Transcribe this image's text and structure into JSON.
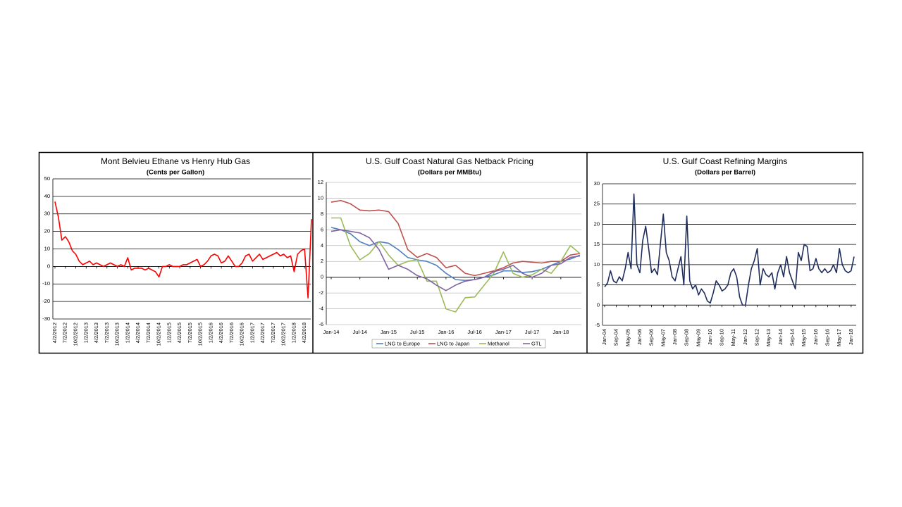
{
  "chart_data": [
    {
      "type": "line",
      "title": "Mont Belvieu Ethane vs Henry Hub Gas",
      "subtitle": "(Cents per Gallon)",
      "categories": [
        "4/2/2012",
        null,
        null,
        "7/2/2012",
        null,
        null,
        "10/2/2012",
        null,
        null,
        "1/2/2013",
        null,
        null,
        "4/2/2013",
        null,
        null,
        "7/2/2013",
        null,
        null,
        "10/2/2013",
        null,
        null,
        "1/2/2014",
        null,
        null,
        "4/2/2014",
        null,
        null,
        "7/2/2014",
        null,
        null,
        "10/2/2014",
        null,
        null,
        "1/2/2015",
        null,
        null,
        "4/2/2015",
        null,
        null,
        "7/2/2015",
        null,
        null,
        "10/2/2015",
        null,
        null,
        "1/2/2016",
        null,
        null,
        "4/2/2016",
        null,
        null,
        "7/2/2016",
        null,
        null,
        "10/2/2016",
        null,
        null,
        "1/2/2017",
        null,
        null,
        "4/2/2017",
        null,
        null,
        "7/2/2017",
        null,
        null,
        "10/2/2017",
        null,
        null,
        "1/2/2018",
        null,
        null,
        "4/2/2018",
        null,
        null
      ],
      "values": [
        37,
        28,
        15,
        17,
        14,
        9,
        7,
        3,
        1,
        2,
        3,
        1,
        2,
        1,
        0,
        1,
        2,
        1,
        0,
        1,
        0,
        5,
        -2,
        -1,
        -1,
        -1,
        -2,
        -1,
        -2,
        -3,
        -6,
        0,
        0,
        1,
        0,
        0,
        0,
        1,
        1,
        2,
        3,
        4,
        0,
        1,
        3,
        6,
        7,
        6,
        2,
        3,
        6,
        3,
        0,
        0,
        2,
        6,
        7,
        3,
        5,
        7,
        4,
        5,
        6,
        7,
        8,
        6,
        7,
        5,
        6,
        -3,
        7,
        9,
        10,
        -18,
        27
      ],
      "color": "#ff0000",
      "ylim": [
        -30,
        50
      ],
      "yticks": [
        -30,
        -20,
        -10,
        0,
        10,
        20,
        30,
        40,
        50
      ],
      "grid": true,
      "grid_color": "#000000"
    },
    {
      "type": "line",
      "title": "U.S. Gulf Coast Natural Gas Netback Pricing",
      "subtitle": "(Dollars per MMBtu)",
      "categories": [
        "Jan-14",
        null,
        null,
        "Jul-14",
        null,
        null,
        "Jan-15",
        null,
        null,
        "Jul-15",
        null,
        null,
        "Jan-16",
        null,
        null,
        "Jul-16",
        null,
        null,
        "Jan-17",
        null,
        null,
        "Jul-17",
        null,
        null,
        "Jan-18",
        null,
        null
      ],
      "series": [
        {
          "name": "LNG to Europe",
          "color": "#4f81bd",
          "values": [
            6.3,
            6,
            5.5,
            4.5,
            4,
            4.5,
            4.3,
            3.5,
            2.5,
            2.2,
            2,
            1.5,
            0.5,
            -0.3,
            -0.4,
            -0.3,
            0,
            0.3,
            0.8,
            0.8,
            0.6,
            0.7,
            1,
            1.5,
            2,
            2.3,
            2.8
          ]
        },
        {
          "name": "LNG to Japan",
          "color": "#c0504d",
          "values": [
            9.5,
            9.7,
            9.3,
            8.5,
            8.4,
            8.5,
            8.3,
            6.8,
            3.5,
            2.5,
            3,
            2.5,
            1.2,
            1.5,
            0.5,
            0.2,
            0.5,
            0.8,
            1.2,
            1.8,
            2,
            1.9,
            1.8,
            2,
            2,
            2.8,
            3
          ]
        },
        {
          "name": "Methanol",
          "color": "#9bbb59",
          "values": [
            7.5,
            7.5,
            4,
            2.2,
            3,
            4.5,
            2.8,
            1.5,
            2,
            2.2,
            -0.5,
            -0.5,
            -4,
            -4.4,
            -2.6,
            -2.5,
            -1,
            0.5,
            3.2,
            0.5,
            0,
            0.3,
            1,
            0.5,
            2,
            4,
            3
          ]
        },
        {
          "name": "GTL",
          "color": "#8064a2",
          "values": [
            5.8,
            6,
            5.8,
            5.6,
            5,
            3.5,
            1,
            1.5,
            1,
            0.2,
            -0.2,
            -1,
            -1.7,
            -1,
            -0.5,
            -0.3,
            0,
            0.7,
            1,
            1.5,
            0.5,
            0,
            0.5,
            1.5,
            1.7,
            2.5,
            2.7
          ]
        }
      ],
      "ylim": [
        -6,
        12
      ],
      "yticks": [
        -6,
        -4,
        -2,
        0,
        2,
        4,
        6,
        8,
        10,
        12
      ],
      "grid": true,
      "grid_color": "#bfbfbf",
      "legend": "bottom"
    },
    {
      "type": "line",
      "title": "U.S. Gulf Coast Refining Margins",
      "subtitle": "(Dollars per Barrel)",
      "categories": [
        "Jan-04",
        null,
        null,
        null,
        "Sep-04",
        null,
        null,
        null,
        "May-05",
        null,
        null,
        null,
        "Jan-06",
        null,
        null,
        null,
        "Sep-06",
        null,
        null,
        null,
        "May-07",
        null,
        null,
        null,
        "Jan-08",
        null,
        null,
        null,
        "Sep-08",
        null,
        null,
        null,
        "May-09",
        null,
        null,
        null,
        "Jan-10",
        null,
        null,
        null,
        "Sep-10",
        null,
        null,
        null,
        "May-11",
        null,
        null,
        null,
        "Jan-12",
        null,
        null,
        null,
        "Sep-12",
        null,
        null,
        null,
        "May-13",
        null,
        null,
        null,
        "Jan-14",
        null,
        null,
        null,
        "Sep-14",
        null,
        null,
        null,
        "May-15",
        null,
        null,
        null,
        "Jan-16",
        null,
        null,
        null,
        "Sep-16",
        null,
        null,
        null,
        "May-17",
        null,
        null,
        null,
        "Jan-18",
        null
      ],
      "values": [
        4.5,
        5.5,
        8.5,
        6,
        5.5,
        7,
        6,
        9,
        13,
        9,
        27.5,
        10,
        8,
        16,
        19.5,
        14,
        8,
        9,
        7.5,
        15,
        22.5,
        13,
        11,
        7,
        6,
        9,
        12,
        5,
        22,
        6,
        4,
        5,
        2.5,
        4,
        3,
        1,
        0.5,
        3,
        6,
        5,
        3.5,
        4,
        5,
        8,
        9,
        7,
        2,
        0,
        0,
        5,
        9,
        11,
        14,
        5,
        9,
        7.5,
        7,
        8,
        4,
        8,
        10,
        7,
        12,
        8,
        6,
        4,
        13,
        11,
        15,
        14.5,
        8.5,
        9,
        11.5,
        9,
        8,
        9,
        8,
        8.5,
        10,
        8,
        14,
        10,
        8.5,
        8,
        8.5,
        12
      ],
      "color": "#1f2d5c",
      "ylim": [
        -5,
        30
      ],
      "yticks": [
        -5,
        0,
        5,
        10,
        15,
        20,
        25,
        30
      ],
      "grid": true,
      "grid_color": "#000000"
    }
  ]
}
